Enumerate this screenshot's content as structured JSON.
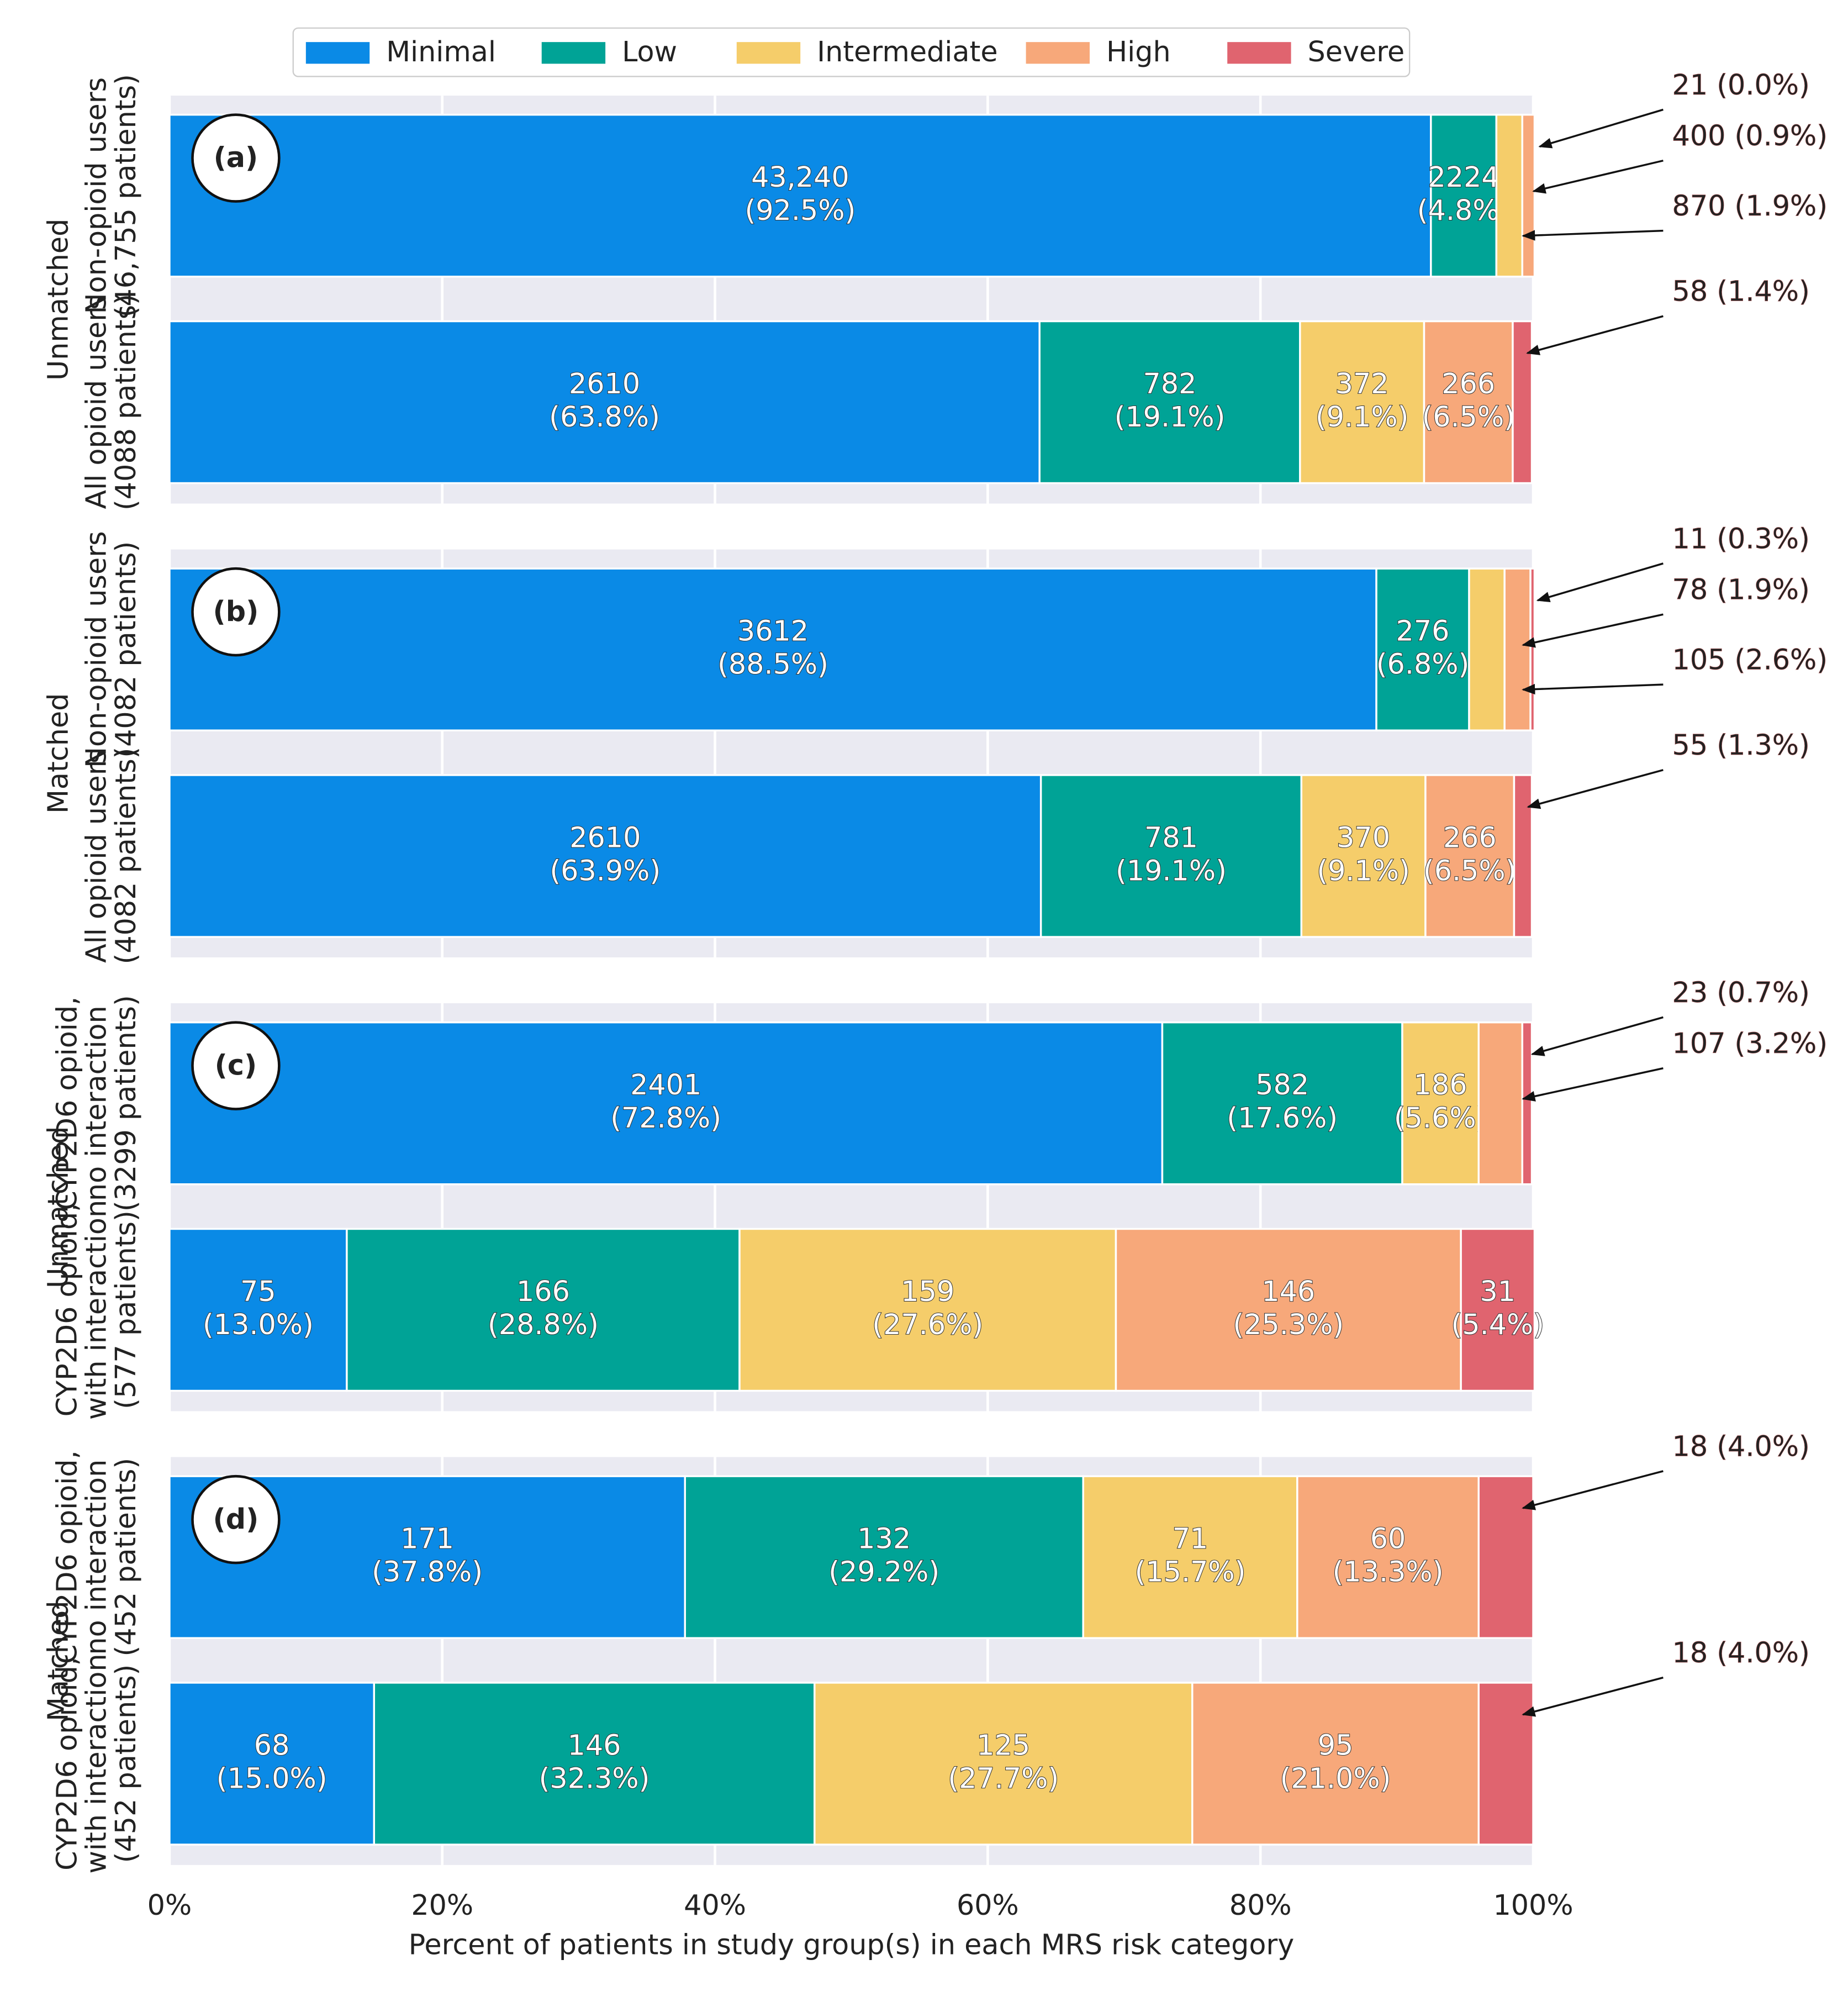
{
  "chart_data": [
    {
      "type": "bar",
      "orientation": "horizontal",
      "stacked": true,
      "panel_label": "(a)",
      "group": "Unmatched",
      "categories": [
        [
          "Non-opioid users",
          "(46,755 patients)"
        ],
        [
          "All opioid users",
          "(4088 patients)"
        ]
      ],
      "series": [
        {
          "name": "Minimal",
          "color": "#0a8ae6",
          "values": [
            92.5,
            63.8
          ],
          "value_labels": [
            [
              "43,240",
              "(92.5%)"
            ],
            [
              "2610",
              "(63.8%)"
            ]
          ]
        },
        {
          "name": "Low",
          "color": "#00a396",
          "values": [
            4.8,
            19.1
          ],
          "value_labels": [
            [
              "2224",
              "(4.8%)"
            ],
            [
              "782",
              "(19.1%)"
            ]
          ]
        },
        {
          "name": "Intermediate",
          "color": "#f5cd6a",
          "values": [
            1.9,
            9.1
          ],
          "value_labels": [
            "870 (1.9%)",
            [
              "372",
              "(9.1%)"
            ]
          ]
        },
        {
          "name": "High",
          "color": "#f7a87a",
          "values": [
            0.9,
            6.5
          ],
          "value_labels": [
            "400 (0.9%)",
            [
              "266",
              "(6.5%)"
            ]
          ]
        },
        {
          "name": "Severe",
          "color": "#e0646f",
          "values": [
            0.0,
            1.4
          ],
          "value_labels": [
            "21 (0.0%)",
            "58 (1.4%)"
          ]
        }
      ],
      "xlim": [
        0,
        100
      ],
      "xticks": [
        0,
        20,
        40,
        60,
        80,
        100
      ],
      "grid": true,
      "legend": "top"
    },
    {
      "type": "bar",
      "orientation": "horizontal",
      "stacked": true,
      "panel_label": "(b)",
      "group": "Matched",
      "categories": [
        [
          "Non-opioid users",
          "(4082 patients)"
        ],
        [
          "All opioid users",
          "(4082 patients)"
        ]
      ],
      "series": [
        {
          "name": "Minimal",
          "color": "#0a8ae6",
          "values": [
            88.5,
            63.9
          ],
          "value_labels": [
            [
              "3612",
              "(88.5%)"
            ],
            [
              "2610",
              "(63.9%)"
            ]
          ]
        },
        {
          "name": "Low",
          "color": "#00a396",
          "values": [
            6.8,
            19.1
          ],
          "value_labels": [
            [
              "276",
              "(6.8%)"
            ],
            [
              "781",
              "(19.1%)"
            ]
          ]
        },
        {
          "name": "Intermediate",
          "color": "#f5cd6a",
          "values": [
            2.6,
            9.1
          ],
          "value_labels": [
            "105 (2.6%)",
            [
              "370",
              "(9.1%)"
            ]
          ]
        },
        {
          "name": "High",
          "color": "#f7a87a",
          "values": [
            1.9,
            6.5
          ],
          "value_labels": [
            "78 (1.9%)",
            [
              "266",
              "(6.5%)"
            ]
          ]
        },
        {
          "name": "Severe",
          "color": "#e0646f",
          "values": [
            0.3,
            1.3
          ],
          "value_labels": [
            "11 (0.3%)",
            "55 (1.3%)"
          ]
        }
      ],
      "xlim": [
        0,
        100
      ],
      "xticks": [
        0,
        20,
        40,
        60,
        80,
        100
      ],
      "grid": true
    },
    {
      "type": "bar",
      "orientation": "horizontal",
      "stacked": true,
      "panel_label": "(c)",
      "group": "Unmatched",
      "categories": [
        [
          "CYP2D6 opioid,",
          "no interaction",
          "(3299 patients)"
        ],
        [
          "CYP2D6 opioid,",
          "with interaction",
          "(577 patients)"
        ]
      ],
      "series": [
        {
          "name": "Minimal",
          "color": "#0a8ae6",
          "values": [
            72.8,
            13.0
          ],
          "value_labels": [
            [
              "2401",
              "(72.8%)"
            ],
            [
              "75",
              "(13.0%)"
            ]
          ]
        },
        {
          "name": "Low",
          "color": "#00a396",
          "values": [
            17.6,
            28.8
          ],
          "value_labels": [
            [
              "582",
              "(17.6%)"
            ],
            [
              "166",
              "(28.8%)"
            ]
          ]
        },
        {
          "name": "Intermediate",
          "color": "#f5cd6a",
          "values": [
            5.6,
            27.6
          ],
          "value_labels": [
            [
              "186",
              "(5.6%)"
            ],
            [
              "159",
              "(27.6%)"
            ]
          ]
        },
        {
          "name": "High",
          "color": "#f7a87a",
          "values": [
            3.2,
            25.3
          ],
          "value_labels": [
            "107 (3.2%)",
            [
              "146",
              "(25.3%)"
            ]
          ]
        },
        {
          "name": "Severe",
          "color": "#e0646f",
          "values": [
            0.7,
            5.4
          ],
          "value_labels": [
            "23 (0.7%)",
            [
              "31",
              "(5.4%)"
            ]
          ]
        }
      ],
      "xlim": [
        0,
        100
      ],
      "xticks": [
        0,
        20,
        40,
        60,
        80,
        100
      ],
      "grid": true
    },
    {
      "type": "bar",
      "orientation": "horizontal",
      "stacked": true,
      "panel_label": "(d)",
      "group": "Matched",
      "categories": [
        [
          "CYP2D6 opioid,",
          "no interaction",
          "(452 patients)"
        ],
        [
          "CYP2D6 opioid,",
          "with interaction",
          "(452 patients)"
        ]
      ],
      "series": [
        {
          "name": "Minimal",
          "color": "#0a8ae6",
          "values": [
            37.8,
            15.0
          ],
          "value_labels": [
            [
              "171",
              "(37.8%)"
            ],
            [
              "68",
              "(15.0%)"
            ]
          ]
        },
        {
          "name": "Low",
          "color": "#00a396",
          "values": [
            29.2,
            32.3
          ],
          "value_labels": [
            [
              "132",
              "(29.2%)"
            ],
            [
              "146",
              "(32.3%)"
            ]
          ]
        },
        {
          "name": "Intermediate",
          "color": "#f5cd6a",
          "values": [
            15.7,
            27.7
          ],
          "value_labels": [
            [
              "71",
              "(15.7%)"
            ],
            [
              "125",
              "(27.7%)"
            ]
          ]
        },
        {
          "name": "High",
          "color": "#f7a87a",
          "values": [
            13.3,
            21.0
          ],
          "value_labels": [
            [
              "60",
              "(13.3%)"
            ],
            [
              "95",
              "(21.0%)"
            ]
          ]
        },
        {
          "name": "Severe",
          "color": "#e0646f",
          "values": [
            4.0,
            4.0
          ],
          "value_labels": [
            "18 (4.0%)",
            "18 (4.0%)"
          ]
        }
      ],
      "xlim": [
        0,
        100
      ],
      "xticks": [
        {
          "value": 0,
          "label": "0%"
        },
        {
          "value": 20,
          "label": "20%"
        },
        {
          "value": 40,
          "label": "40%"
        },
        {
          "value": 60,
          "label": "60%"
        },
        {
          "value": 80,
          "label": "80%"
        },
        {
          "value": 100,
          "label": "100%"
        }
      ],
      "xlabel": "Percent of patients in study group(s) in each MRS risk category",
      "grid": true
    }
  ]
}
